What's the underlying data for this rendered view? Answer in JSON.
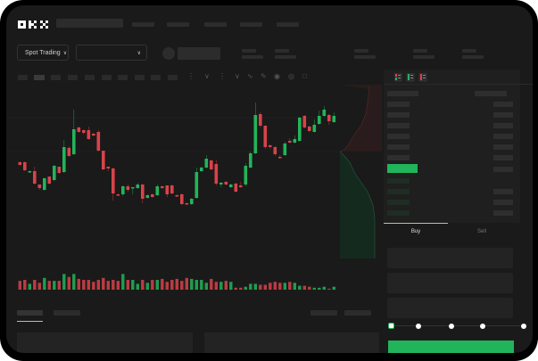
{
  "header": {
    "logo": "OKX",
    "market_dropdown": "Spot Trading"
  },
  "order_form": {
    "tabs": [
      "Buy",
      "Sell"
    ],
    "active_tab": "Buy",
    "slider_percent": 0
  },
  "colors": {
    "up": "#22b45a",
    "down": "#d8434a",
    "background": "#1a1a1a",
    "accent": "#22b45a"
  },
  "chart_data": {
    "type": "candlestick",
    "candles": [
      [
        58,
        55,
        59,
        54
      ],
      [
        58,
        49,
        59,
        48
      ],
      [
        47,
        48,
        49,
        46
      ],
      [
        48,
        34,
        53,
        33
      ],
      [
        33,
        29,
        33,
        27
      ],
      [
        27,
        40,
        41,
        26
      ],
      [
        42,
        34,
        42,
        33
      ],
      [
        38,
        54,
        55,
        37
      ],
      [
        53,
        46,
        53,
        45
      ],
      [
        47,
        75,
        83,
        46
      ],
      [
        74,
        65,
        76,
        64
      ],
      [
        67,
        95,
        117,
        66
      ],
      [
        97,
        92,
        98,
        91
      ],
      [
        94,
        91,
        95,
        89
      ],
      [
        94,
        84,
        98,
        83
      ],
      [
        90,
        88,
        91,
        87
      ],
      [
        92,
        71,
        94,
        70
      ],
      [
        71,
        50,
        71,
        49
      ],
      [
        53,
        51,
        53,
        48
      ],
      [
        51,
        23,
        52,
        15
      ],
      [
        22,
        21,
        23,
        20
      ],
      [
        22,
        31,
        32,
        20
      ],
      [
        31,
        27,
        33,
        25
      ],
      [
        29,
        30,
        30,
        22
      ],
      [
        29,
        33,
        35,
        28
      ],
      [
        33,
        17,
        34,
        12
      ],
      [
        18,
        21,
        22,
        17
      ],
      [
        22,
        19,
        23,
        18
      ],
      [
        21,
        31,
        33,
        20
      ],
      [
        31,
        29,
        32,
        28
      ],
      [
        32,
        22,
        32,
        19
      ],
      [
        32,
        23,
        33,
        22
      ],
      [
        21,
        20,
        22,
        19
      ],
      [
        22,
        11,
        23,
        10
      ],
      [
        12,
        11,
        13,
        10
      ],
      [
        11,
        17,
        18,
        10
      ],
      [
        18,
        47,
        52,
        17
      ],
      [
        48,
        52,
        53,
        47
      ],
      [
        52,
        62,
        66,
        51
      ],
      [
        60,
        50,
        61,
        49
      ],
      [
        56,
        34,
        60,
        32
      ],
      [
        33,
        35,
        36,
        30
      ],
      [
        36,
        33,
        37,
        32
      ],
      [
        30,
        33,
        34,
        29
      ],
      [
        34,
        25,
        35,
        24
      ],
      [
        32,
        30,
        36,
        29
      ],
      [
        33,
        54,
        57,
        31
      ],
      [
        52,
        68,
        70,
        51
      ],
      [
        68,
        111,
        125,
        67
      ],
      [
        112,
        99,
        114,
        97
      ],
      [
        99,
        75,
        99,
        73
      ],
      [
        77,
        75,
        78,
        73
      ],
      [
        75,
        67,
        76,
        65
      ],
      [
        64,
        63,
        66,
        62
      ],
      [
        66,
        79,
        81,
        65
      ],
      [
        82,
        80,
        85,
        79
      ],
      [
        80,
        84,
        88,
        79
      ],
      [
        82,
        108,
        109,
        81
      ],
      [
        110,
        97,
        111,
        96
      ],
      [
        98,
        93,
        99,
        92
      ],
      [
        92,
        100,
        106,
        91
      ],
      [
        101,
        110,
        116,
        100
      ],
      [
        110,
        117,
        121,
        109
      ],
      [
        111,
        104,
        112,
        100
      ],
      [
        103,
        110,
        114,
        102
      ]
    ],
    "volume": [
      9,
      10,
      6,
      10,
      7,
      12,
      9,
      9,
      9,
      16,
      13,
      16,
      11,
      10,
      10,
      8,
      10,
      12,
      9,
      10,
      9,
      16,
      10,
      10,
      6,
      10,
      7,
      10,
      10,
      11,
      8,
      10,
      11,
      9,
      12,
      11,
      10,
      10,
      7,
      11,
      8,
      8,
      9,
      8,
      2,
      2,
      3,
      6,
      6,
      5,
      5,
      7,
      8,
      7,
      7,
      8,
      7,
      4,
      4,
      3,
      2,
      2,
      3,
      1,
      3
    ],
    "gridlines": true
  }
}
